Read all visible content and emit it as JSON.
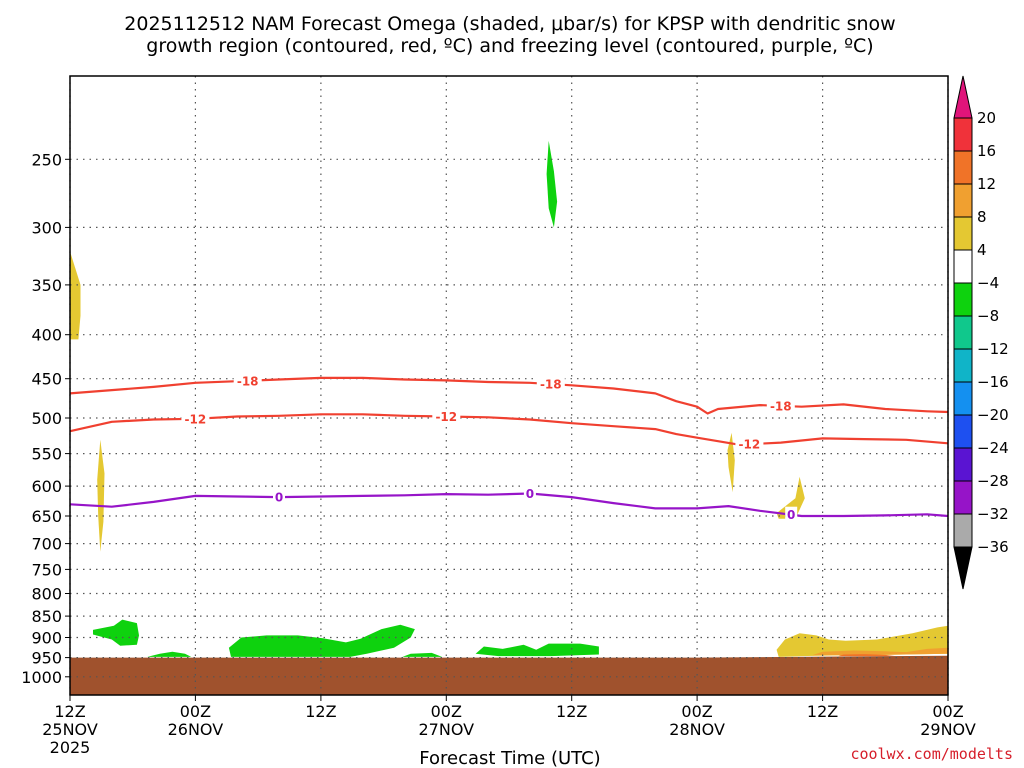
{
  "title": {
    "line1": "2025112512 NAM Forecast Omega (shaded, μbar/s) for KPSP with dendritic snow",
    "line2": "growth region (contoured, red, ºC) and freezing level (contoured, purple, ºC)"
  },
  "credit": "coolwx.com/modelts",
  "chart_data": {
    "type": "heatmap",
    "title": "2025112512 NAM Forecast Omega (shaded, μbar/s) for KPSP with dendritic snow growth region (contoured, red, ºC) and freezing level (contoured, purple, ºC)",
    "xlabel": "Forecast Time (UTC)",
    "ylabel": "",
    "x_unit": "hours since 2025-11-25 12Z",
    "xlim": [
      0,
      84
    ],
    "ylim": [
      1050,
      200
    ],
    "y_scale": "log-pressure",
    "grid": true,
    "x_ticks": [
      {
        "x": 0,
        "line1": "12Z",
        "line2": "25NOV",
        "line3": "2025"
      },
      {
        "x": 12,
        "line1": "00Z",
        "line2": "26NOV",
        "line3": ""
      },
      {
        "x": 24,
        "line1": "12Z",
        "line2": "",
        "line3": ""
      },
      {
        "x": 36,
        "line1": "00Z",
        "line2": "27NOV",
        "line3": ""
      },
      {
        "x": 48,
        "line1": "12Z",
        "line2": "",
        "line3": ""
      },
      {
        "x": 60,
        "line1": "00Z",
        "line2": "28NOV",
        "line3": ""
      },
      {
        "x": 72,
        "line1": "12Z",
        "line2": "",
        "line3": ""
      },
      {
        "x": 84,
        "line1": "00Z",
        "line2": "29NOV",
        "line3": ""
      }
    ],
    "y_ticks": [
      250,
      300,
      350,
      400,
      450,
      500,
      550,
      600,
      650,
      700,
      750,
      800,
      850,
      900,
      950,
      1000
    ],
    "colorbar": {
      "unit": "μbar/s",
      "labels": [
        "20",
        "16",
        "12",
        "8",
        "4",
        "−4",
        "−8",
        "−12",
        "−16",
        "−20",
        "−24",
        "−28",
        "−32",
        "−36"
      ],
      "bins": [
        {
          "from": 20,
          "to": null,
          "color": "#e0147a"
        },
        {
          "from": 16,
          "to": 20,
          "color": "#f0323a"
        },
        {
          "from": 12,
          "to": 16,
          "color": "#f07328"
        },
        {
          "from": 8,
          "to": 12,
          "color": "#f0a030"
        },
        {
          "from": 4,
          "to": 8,
          "color": "#e4c832"
        },
        {
          "from": -4,
          "to": 4,
          "color": "#ffffff"
        },
        {
          "from": -8,
          "to": -4,
          "color": "#0ed20e"
        },
        {
          "from": -12,
          "to": -8,
          "color": "#10c88c"
        },
        {
          "from": -16,
          "to": -12,
          "color": "#10b4c8"
        },
        {
          "from": -20,
          "to": -16,
          "color": "#1490f0"
        },
        {
          "from": -24,
          "to": -20,
          "color": "#1e50f0"
        },
        {
          "from": -28,
          "to": -24,
          "color": "#5a14d2"
        },
        {
          "from": -32,
          "to": -28,
          "color": "#9614c8"
        },
        {
          "from": -36,
          "to": -32,
          "color": "#aaaaaa"
        },
        {
          "from": null,
          "to": -36,
          "color": "#000000"
        }
      ]
    },
    "terrain": {
      "surface_pressure_hPa": [
        [
          0,
          950
        ],
        [
          60,
          950
        ],
        [
          84,
          945
        ]
      ],
      "color": "#a0522d"
    },
    "contours": [
      {
        "name": "-18 ºC",
        "label": "-18",
        "color": "#f04030",
        "points": [
          [
            0,
            468
          ],
          [
            4,
            464
          ],
          [
            8,
            460
          ],
          [
            12,
            455
          ],
          [
            16,
            453
          ],
          [
            20,
            451
          ],
          [
            24,
            449
          ],
          [
            28,
            449
          ],
          [
            32,
            451
          ],
          [
            36,
            452
          ],
          [
            40,
            454
          ],
          [
            44,
            455
          ],
          [
            48,
            458
          ],
          [
            52,
            462
          ],
          [
            56,
            468
          ],
          [
            58,
            478
          ],
          [
            60,
            485
          ],
          [
            61,
            494
          ],
          [
            62,
            488
          ],
          [
            66,
            483
          ],
          [
            70,
            485
          ],
          [
            74,
            482
          ],
          [
            78,
            488
          ],
          [
            82,
            491
          ],
          [
            84,
            492
          ]
        ],
        "label_positions": [
          17,
          46,
          68
        ]
      },
      {
        "name": "-12 ºC",
        "label": "-12",
        "color": "#f04030",
        "points": [
          [
            0,
            518
          ],
          [
            4,
            505
          ],
          [
            8,
            502
          ],
          [
            12,
            501
          ],
          [
            16,
            498
          ],
          [
            20,
            497
          ],
          [
            24,
            495
          ],
          [
            28,
            495
          ],
          [
            32,
            497
          ],
          [
            36,
            498
          ],
          [
            40,
            499
          ],
          [
            44,
            502
          ],
          [
            48,
            507
          ],
          [
            52,
            511
          ],
          [
            56,
            515
          ],
          [
            58,
            522
          ],
          [
            60,
            527
          ],
          [
            64,
            537
          ],
          [
            68,
            534
          ],
          [
            72,
            528
          ],
          [
            76,
            529
          ],
          [
            80,
            530
          ],
          [
            84,
            535
          ]
        ],
        "label_positions": [
          12,
          36,
          65
        ]
      },
      {
        "name": "0 ºC",
        "label": "0",
        "color": "#9614c8",
        "points": [
          [
            0,
            630
          ],
          [
            4,
            634
          ],
          [
            8,
            626
          ],
          [
            12,
            616
          ],
          [
            16,
            617
          ],
          [
            20,
            618
          ],
          [
            24,
            617
          ],
          [
            28,
            616
          ],
          [
            32,
            615
          ],
          [
            36,
            613
          ],
          [
            40,
            614
          ],
          [
            44,
            612
          ],
          [
            48,
            618
          ],
          [
            52,
            628
          ],
          [
            56,
            637
          ],
          [
            60,
            637
          ],
          [
            63,
            633
          ],
          [
            66,
            641
          ],
          [
            70,
            650
          ],
          [
            74,
            650
          ],
          [
            78,
            649
          ],
          [
            82,
            647
          ],
          [
            84,
            650
          ]
        ],
        "label_positions": [
          20,
          44,
          69
        ]
      }
    ],
    "shaded_regions": [
      {
        "bin": "4 to 8",
        "color": "#e4c832",
        "polygon": [
          [
            0,
            320
          ],
          [
            1,
            350
          ],
          [
            1,
            380
          ],
          [
            0.8,
            405
          ],
          [
            0,
            405
          ]
        ]
      },
      {
        "bin": "4 to 8",
        "color": "#e4c832",
        "polygon": [
          [
            2.9,
            530
          ],
          [
            3.3,
            580
          ],
          [
            3.2,
            660
          ],
          [
            2.9,
            715
          ],
          [
            2.7,
            650
          ],
          [
            2.6,
            590
          ]
        ]
      },
      {
        "bin": "-8 to -4",
        "color": "#0ed20e",
        "polygon": [
          [
            45.8,
            238
          ],
          [
            46.3,
            258
          ],
          [
            46.6,
            280
          ],
          [
            46.3,
            300
          ],
          [
            45.8,
            285
          ],
          [
            45.6,
            260
          ]
        ]
      },
      {
        "bin": "4 to 8",
        "color": "#e4c832",
        "polygon": [
          [
            63.3,
            520
          ],
          [
            63.6,
            560
          ],
          [
            63.4,
            610
          ],
          [
            63,
            570
          ],
          [
            62.9,
            545
          ]
        ]
      },
      {
        "bin": "4 to 8",
        "color": "#e4c832",
        "polygon": [
          [
            67.6,
            645
          ],
          [
            69.4,
            620
          ],
          [
            69.8,
            585
          ],
          [
            70.3,
            620
          ],
          [
            69.4,
            655
          ],
          [
            67.8,
            655
          ]
        ]
      },
      {
        "bin": "-8 to -4",
        "color": "#0ed20e",
        "polygon": [
          [
            2.2,
            882
          ],
          [
            4.2,
            872
          ],
          [
            5,
            858
          ],
          [
            6.4,
            866
          ],
          [
            6.6,
            895
          ],
          [
            6.4,
            918
          ],
          [
            4.8,
            920
          ],
          [
            4,
            905
          ],
          [
            2.2,
            893
          ]
        ]
      },
      {
        "bin": "-8 to -4",
        "color": "#0ed20e",
        "polygon": [
          [
            7.4,
            948
          ],
          [
            8.6,
            940
          ],
          [
            9.8,
            935
          ],
          [
            11,
            940
          ],
          [
            11.6,
            948
          ]
        ]
      },
      {
        "bin": "-8 to -4",
        "color": "#0ed20e",
        "polygon": [
          [
            15.4,
            948
          ],
          [
            15.2,
            925
          ],
          [
            16.4,
            900
          ],
          [
            18.8,
            895
          ],
          [
            21.8,
            895
          ],
          [
            24.2,
            902
          ],
          [
            26.4,
            912
          ],
          [
            27.8,
            903
          ],
          [
            29.8,
            880
          ],
          [
            31.6,
            870
          ],
          [
            33,
            880
          ],
          [
            32.6,
            900
          ],
          [
            31,
            925
          ],
          [
            28.4,
            940
          ],
          [
            26.8,
            948
          ]
        ]
      },
      {
        "bin": "-8 to -4",
        "color": "#0ed20e",
        "polygon": [
          [
            31.8,
            948
          ],
          [
            32.6,
            940
          ],
          [
            34.6,
            938
          ],
          [
            35.6,
            948
          ]
        ]
      },
      {
        "bin": "-8 to -4",
        "color": "#0ed20e",
        "polygon": [
          [
            38.8,
            940
          ],
          [
            39.6,
            922
          ],
          [
            41.4,
            928
          ],
          [
            43.4,
            918
          ],
          [
            44.6,
            930
          ],
          [
            45.8,
            915
          ],
          [
            48.8,
            915
          ],
          [
            50.6,
            922
          ],
          [
            50.6,
            942
          ],
          [
            46,
            946
          ],
          [
            41,
            946
          ]
        ]
      },
      {
        "bin": "4 to 8",
        "color": "#e4c832",
        "polygon": [
          [
            67.8,
            948
          ],
          [
            67.6,
            930
          ],
          [
            68.4,
            905
          ],
          [
            69.8,
            890
          ],
          [
            71.4,
            895
          ],
          [
            72.6,
            905
          ],
          [
            74.2,
            908
          ],
          [
            77.2,
            905
          ],
          [
            80.6,
            890
          ],
          [
            83,
            876
          ],
          [
            84,
            872
          ],
          [
            84,
            940
          ],
          [
            80,
            942
          ],
          [
            74,
            944
          ],
          [
            70,
            946
          ]
        ]
      },
      {
        "bin": "8 to 12",
        "color": "#f0a030",
        "polygon": [
          [
            71,
            944
          ],
          [
            72,
            935
          ],
          [
            75,
            932
          ],
          [
            78,
            934
          ],
          [
            80,
            936
          ],
          [
            82,
            928
          ],
          [
            84,
            925
          ],
          [
            84,
            940
          ],
          [
            80,
            942
          ],
          [
            75,
            944
          ]
        ]
      },
      {
        "bin": "12 to 16",
        "color": "#f07328",
        "polygon": [
          [
            73.5,
            946
          ],
          [
            74,
            942
          ],
          [
            76,
            941
          ],
          [
            78,
            943
          ],
          [
            79,
            946
          ]
        ]
      }
    ]
  }
}
